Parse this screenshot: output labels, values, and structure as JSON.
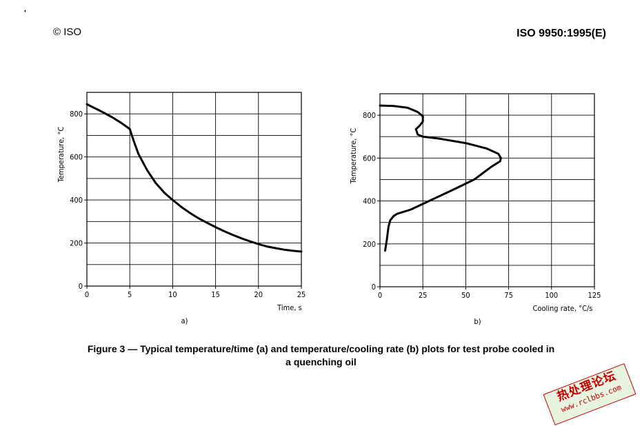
{
  "header": {
    "left": "© ISO",
    "right": "ISO 9950:1995(E)",
    "mark": "'"
  },
  "caption": {
    "line1": "Figure 3 — Typical temperature/time (a) and temperature/cooling rate (b) plots for test probe cooled in",
    "line2": "a quenching oil"
  },
  "watermark": {
    "text": "热处理论坛",
    "url": "www.rclbbs.com",
    "color": "#c40000"
  },
  "chart_data": [
    {
      "type": "line",
      "label": "a)",
      "xlabel": "Time, s",
      "ylabel": "Temperature, °C",
      "xlim": [
        0,
        25
      ],
      "ylim": [
        0,
        900
      ],
      "xticks": [
        0,
        5,
        10,
        15,
        20,
        25
      ],
      "yticks": [
        0,
        200,
        400,
        600,
        800
      ],
      "grid": true,
      "series": [
        {
          "x": [
            0,
            1,
            2,
            3,
            4,
            5,
            5.5,
            6,
            7,
            8,
            9,
            10,
            11,
            12,
            13,
            14,
            15,
            16,
            17,
            18,
            19,
            20,
            21,
            22,
            23,
            24,
            25
          ],
          "y": [
            845,
            825,
            805,
            783,
            758,
            730,
            670,
            615,
            540,
            480,
            435,
            400,
            368,
            340,
            315,
            294,
            274,
            255,
            238,
            222,
            208,
            195,
            184,
            176,
            169,
            164,
            160
          ]
        }
      ]
    },
    {
      "type": "line",
      "label": "b)",
      "xlabel": "Cooling rate, °C/s",
      "ylabel": "Temperature, °C",
      "xlim": [
        0,
        125
      ],
      "ylim": [
        0,
        900
      ],
      "xticks": [
        0,
        25,
        50,
        75,
        100,
        125
      ],
      "yticks": [
        0,
        200,
        400,
        600,
        800
      ],
      "grid": true,
      "series": [
        {
          "x": [
            0,
            8,
            16,
            22,
            25,
            25,
            23,
            21,
            22,
            25,
            35,
            50,
            62,
            69,
            70.5,
            70,
            65,
            55,
            42,
            30,
            18,
            10,
            8,
            6,
            5,
            4,
            3
          ],
          "y": [
            845,
            843,
            835,
            815,
            795,
            770,
            750,
            735,
            710,
            700,
            690,
            670,
            645,
            620,
            600,
            585,
            560,
            500,
            450,
            405,
            360,
            340,
            330,
            310,
            280,
            220,
            168
          ]
        }
      ]
    }
  ]
}
